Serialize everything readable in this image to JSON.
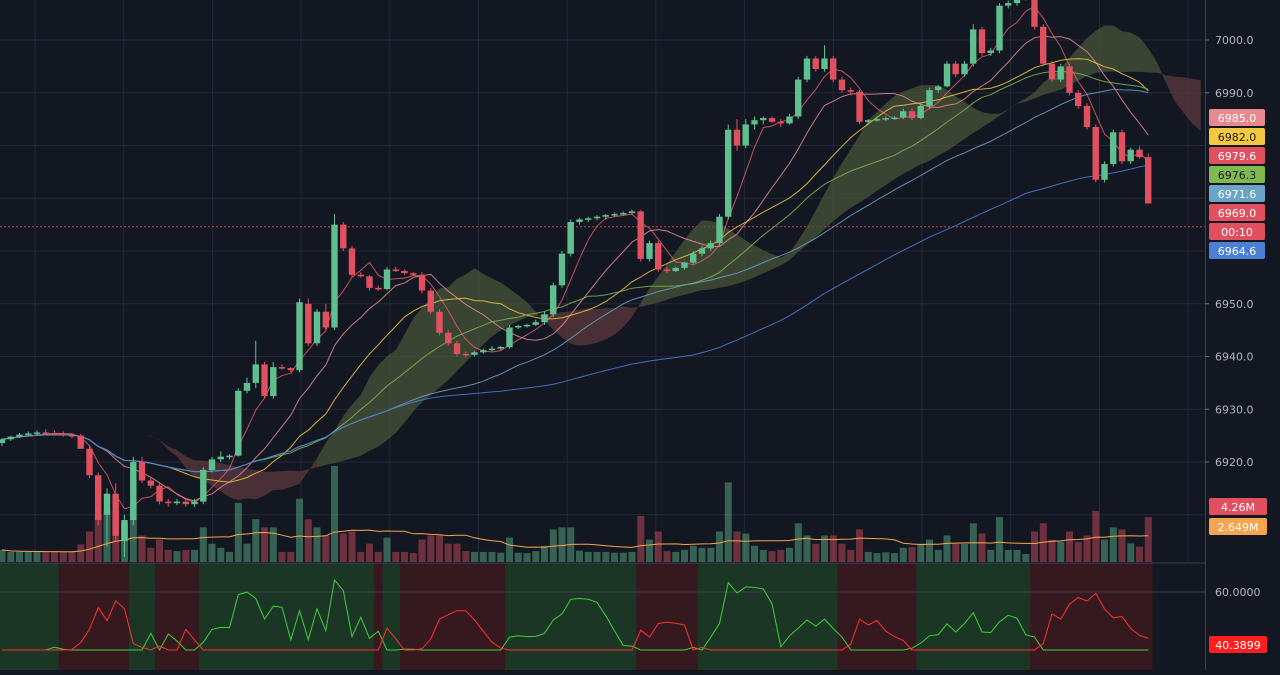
{
  "chart_data": {
    "type": "candlestick",
    "price_axis": {
      "ticks": [
        7000,
        6990,
        6950,
        6940,
        6930,
        6920
      ],
      "tick_labels": [
        "7000.0",
        "6990.0",
        "6950.0",
        "6940.0",
        "6930.0",
        "6920.0"
      ]
    },
    "price_badges": [
      {
        "label": "6985.0",
        "value": 6985.0,
        "color": "#e8898f"
      },
      {
        "label": "6982.0",
        "value": 6982.0,
        "color": "#f5c842"
      },
      {
        "label": "6979.6",
        "value": 6979.6,
        "color": "#e0505f"
      },
      {
        "label": "6976.3",
        "value": 6976.3,
        "color": "#7fb950"
      },
      {
        "label": "6971.6",
        "value": 6971.6,
        "color": "#6aa5c7"
      },
      {
        "label": "6969.0",
        "value": 6969.0,
        "color": "#e0505f"
      },
      {
        "label": "00:10",
        "value": 6965.3,
        "color": "#e0505f"
      },
      {
        "label": "6964.6",
        "value": 6964.6,
        "color": "#4a7fd6"
      }
    ],
    "reference_line": 6964.6,
    "candles": [
      [
        6923.6,
        6924.5,
        6923,
        6924.3
      ],
      [
        6924.3,
        6925,
        6924,
        6924.8
      ],
      [
        6924.8,
        6925.5,
        6924.5,
        6925.2
      ],
      [
        6925.2,
        6925.8,
        6924.8,
        6925.4
      ],
      [
        6925.4,
        6926,
        6925,
        6925.6
      ],
      [
        6925.6,
        6926.2,
        6925.2,
        6925.5
      ],
      [
        6925.5,
        6926,
        6925,
        6925.4
      ],
      [
        6925.4,
        6925.8,
        6924.8,
        6925.1
      ],
      [
        6925.1,
        6925.5,
        6924.5,
        6925
      ],
      [
        6925,
        6925.3,
        6922.5,
        6922.5
      ],
      [
        6922.5,
        6923,
        6917,
        6917.5
      ],
      [
        6917.5,
        6918,
        6908,
        6909
      ],
      [
        6910,
        6915,
        6904,
        6914
      ],
      [
        6914,
        6916,
        6905,
        6906
      ],
      [
        6905,
        6910,
        6902,
        6909
      ],
      [
        6909,
        6921,
        6908,
        6920
      ],
      [
        6920,
        6921,
        6916,
        6916.5
      ],
      [
        6916.5,
        6917,
        6915,
        6915.5
      ],
      [
        6915.5,
        6916,
        6912,
        6912.5
      ],
      [
        6912.5,
        6913,
        6911.5,
        6912.2
      ],
      [
        6912.2,
        6913,
        6911.8,
        6912.5
      ],
      [
        6912.5,
        6913,
        6911.5,
        6912
      ],
      [
        6912,
        6913,
        6911.5,
        6912.5
      ],
      [
        6912.5,
        6919,
        6912,
        6918.5
      ],
      [
        6918.5,
        6921,
        6918,
        6920.5
      ],
      [
        6920.5,
        6922,
        6920,
        6921
      ],
      [
        6921,
        6921.5,
        6920.5,
        6921.2
      ],
      [
        6921.2,
        6934,
        6921,
        6933.5
      ],
      [
        6933.5,
        6936,
        6933,
        6935
      ],
      [
        6935,
        6943,
        6934,
        6938.5
      ],
      [
        6938.5,
        6939,
        6932,
        6932.5
      ],
      [
        6932.5,
        6939,
        6932,
        6938
      ],
      [
        6938,
        6938.5,
        6937.5,
        6937.8
      ],
      [
        6937.8,
        6938,
        6937,
        6937.4
      ],
      [
        6937.4,
        6951,
        6937,
        6950.3
      ],
      [
        6950,
        6951,
        6942,
        6942.5
      ],
      [
        6942.5,
        6949,
        6942,
        6948.5
      ],
      [
        6948.5,
        6950,
        6945,
        6945.5
      ],
      [
        6945.5,
        6967,
        6945,
        6965
      ],
      [
        6965,
        6965.5,
        6960,
        6960.5
      ],
      [
        6960.5,
        6961,
        6955,
        6955.5
      ],
      [
        6955.5,
        6956,
        6955,
        6955.2
      ],
      [
        6955.2,
        6955.5,
        6952.5,
        6953
      ],
      [
        6953,
        6953.5,
        6952.5,
        6952.8
      ],
      [
        6952.8,
        6957,
        6952.5,
        6956.5
      ],
      [
        6956.5,
        6957,
        6956,
        6956.2
      ],
      [
        6956.2,
        6956.5,
        6955.5,
        6955.8
      ],
      [
        6955.8,
        6956,
        6955.3,
        6955.5
      ],
      [
        6955.5,
        6956,
        6952,
        6952.5
      ],
      [
        6952.5,
        6953,
        6948,
        6948.5
      ],
      [
        6948.5,
        6949,
        6944,
        6944.5
      ],
      [
        6944.5,
        6945,
        6942,
        6942.5
      ],
      [
        6942.5,
        6943,
        6940,
        6940.5
      ],
      [
        6940.5,
        6941,
        6939.8,
        6940.3
      ],
      [
        6940.3,
        6941,
        6940,
        6940.8
      ],
      [
        6940.8,
        6941.5,
        6940.5,
        6941.2
      ],
      [
        6941.2,
        6942,
        6941,
        6941.5
      ],
      [
        6941.5,
        6942,
        6941.2,
        6941.8
      ],
      [
        6941.8,
        6946,
        6941.5,
        6945.5
      ],
      [
        6945.5,
        6946,
        6945.2,
        6945.8
      ],
      [
        6945.8,
        6946.2,
        6945.5,
        6946
      ],
      [
        6946,
        6947,
        6945.8,
        6946.5
      ],
      [
        6946.5,
        6948.5,
        6946,
        6948
      ],
      [
        6948,
        6954,
        6947.5,
        6953.5
      ],
      [
        6953.5,
        6960,
        6953,
        6959.5
      ],
      [
        6959.5,
        6966,
        6959,
        6965.5
      ],
      [
        6965.5,
        6966.3,
        6965,
        6966
      ],
      [
        6966,
        6966.5,
        6965.5,
        6966.2
      ],
      [
        6966.2,
        6966.8,
        6965.8,
        6966.5
      ],
      [
        6966.5,
        6967,
        6966,
        6966.8
      ],
      [
        6966.8,
        6967.3,
        6966.5,
        6967
      ],
      [
        6967,
        6967.5,
        6966.7,
        6967.2
      ],
      [
        6967.2,
        6967.8,
        6966.8,
        6967.5
      ],
      [
        6967.5,
        6967.8,
        6958,
        6958.5
      ],
      [
        6958.5,
        6962,
        6958,
        6961.5
      ],
      [
        6961.5,
        6962,
        6956,
        6956.5
      ],
      [
        6956.5,
        6957,
        6955.8,
        6956.2
      ],
      [
        6956.2,
        6957,
        6956,
        6956.8
      ],
      [
        6956.8,
        6958,
        6956.5,
        6957.8
      ],
      [
        6957.8,
        6960,
        6957.5,
        6959.5
      ],
      [
        6959.5,
        6961,
        6959,
        6960.5
      ],
      [
        6960.5,
        6962,
        6960,
        6961.5
      ],
      [
        6961.5,
        6967,
        6961,
        6966.5
      ],
      [
        6966.5,
        6984,
        6966,
        6983
      ],
      [
        6983,
        6985,
        6979,
        6980
      ],
      [
        6980,
        6985,
        6979.5,
        6984
      ],
      [
        6984,
        6985.5,
        6983,
        6984.8
      ],
      [
        6984.8,
        6985.5,
        6984,
        6985.2
      ],
      [
        6985.2,
        6985.5,
        6984.3,
        6984.5
      ],
      [
        6984.5,
        6985,
        6983.5,
        6984.2
      ],
      [
        6984.2,
        6986,
        6984,
        6985.5
      ],
      [
        6985.5,
        6993,
        6985,
        6992.5
      ],
      [
        6992.5,
        6997,
        6992,
        6996.5
      ],
      [
        6996.5,
        6997,
        6994,
        6994.5
      ],
      [
        6994.5,
        6999,
        6994,
        6996.5
      ],
      [
        6996.5,
        6997,
        6992,
        6992.5
      ],
      [
        6992.5,
        6993,
        6990,
        6990.5
      ],
      [
        6990.5,
        6991,
        6989.5,
        6990.2
      ],
      [
        6990.2,
        6990.5,
        6984,
        6984.5
      ],
      [
        6984.5,
        6985,
        6984,
        6984.8
      ],
      [
        6984.8,
        6985.2,
        6984.5,
        6985
      ],
      [
        6985,
        6985.5,
        6984.6,
        6985.2
      ],
      [
        6985.2,
        6985.6,
        6984.9,
        6985.3
      ],
      [
        6985.3,
        6987,
        6985,
        6986.5
      ],
      [
        6986.5,
        6987,
        6984.8,
        6985.2
      ],
      [
        6985.2,
        6988,
        6985,
        6987.5
      ],
      [
        6987.5,
        6991,
        6987,
        6990.5
      ],
      [
        6990.5,
        6991.5,
        6990,
        6991.2
      ],
      [
        6991.2,
        6996,
        6991,
        6995.5
      ],
      [
        6995.5,
        6996,
        6993,
        6993.5
      ],
      [
        6993.5,
        6996,
        6993,
        6995.5
      ],
      [
        6995.5,
        7003,
        6995,
        7002
      ],
      [
        7002,
        7002.5,
        6997,
        6997.5
      ],
      [
        6997.5,
        6998.5,
        6997,
        6998
      ],
      [
        6998,
        7007,
        6997.5,
        7006.5
      ],
      [
        7006.5,
        7007.5,
        7006,
        7007
      ],
      [
        7007,
        7008,
        7006.5,
        7007.8
      ],
      [
        7007.8,
        7008,
        7007.5,
        7007.9
      ],
      [
        7007.9,
        7008,
        7002,
        7002.5
      ],
      [
        7002.5,
        7003,
        6995,
        6995.5
      ],
      [
        6995.5,
        6996,
        6992,
        6992.5
      ],
      [
        6992.5,
        6995.5,
        6992,
        6995
      ],
      [
        6995,
        6995.5,
        6989.5,
        6990
      ],
      [
        6990,
        6990.5,
        6987,
        6987.5
      ],
      [
        6987.5,
        6988,
        6983,
        6983.5
      ],
      [
        6983.5,
        6984,
        6973,
        6973.5
      ],
      [
        6973.5,
        6977,
        6973,
        6976.5
      ],
      [
        6976.5,
        6983,
        6976,
        6982.5
      ],
      [
        6982.5,
        6983,
        6976.5,
        6977
      ],
      [
        6977,
        6979.6,
        6976.5,
        6979.2
      ],
      [
        6979.2,
        6979.8,
        6977.5,
        6977.8
      ],
      [
        6977.8,
        6978.5,
        6969,
        6969
      ]
    ],
    "volume": {
      "labels": [
        "4.26M",
        "2.649M"
      ],
      "label_colors": [
        "#e0505f",
        "#f5a450"
      ]
    },
    "oscillator": {
      "ticks": [
        60
      ],
      "tick_labels": [
        "60.0000"
      ],
      "current_label": "40.3899",
      "current_color": "#ff1e1e"
    },
    "colors": {
      "background": "#131722",
      "grid": "#232838",
      "bull": "#5fbf8f",
      "bear": "#e0505f",
      "cloud_bull": "#47543a",
      "cloud_bear": "#5b3a3e"
    }
  }
}
